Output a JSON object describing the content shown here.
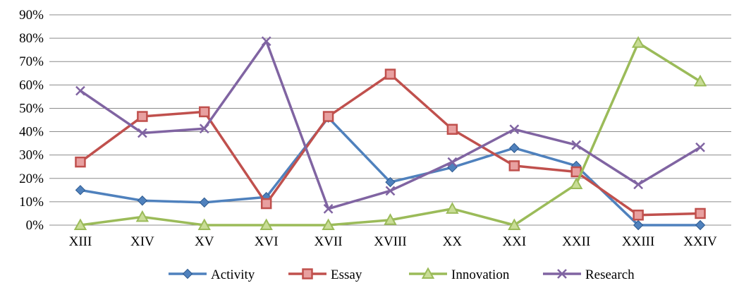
{
  "chart_data": {
    "type": "line",
    "title": "",
    "xlabel": "",
    "ylabel": "",
    "categories": [
      "XIII",
      "XIV",
      "XV",
      "XVI",
      "XVII",
      "XVIII",
      "XX",
      "XXI",
      "XXII",
      "XXIII",
      "XXIV"
    ],
    "ylim": [
      0,
      90
    ],
    "yticks": [
      0,
      10,
      20,
      30,
      40,
      50,
      60,
      70,
      80,
      90
    ],
    "ytick_labels": [
      "0%",
      "10%",
      "20%",
      "30%",
      "40%",
      "50%",
      "60%",
      "70%",
      "80%",
      "90%"
    ],
    "grid": true,
    "legend_position": "bottom",
    "series": [
      {
        "name": "Activity",
        "color": "#4f81bd",
        "marker": "diamond",
        "values": [
          15,
          10.5,
          9.7,
          12,
          46,
          18.4,
          24.7,
          33,
          25.4,
          0,
          0
        ]
      },
      {
        "name": "Essay",
        "color": "#c0504d",
        "marker": "square",
        "values": [
          27,
          46.5,
          48.5,
          9.2,
          46.5,
          64.6,
          41,
          25.4,
          22.8,
          4.3,
          5
        ]
      },
      {
        "name": "Innovation",
        "color": "#9bbb59",
        "marker": "triangle",
        "values": [
          0,
          3.5,
          0,
          0,
          0,
          2.2,
          7,
          0,
          17.5,
          78,
          61.5
        ]
      },
      {
        "name": "Research",
        "color": "#8064a2",
        "marker": "x",
        "values": [
          57.5,
          39.4,
          41.3,
          78.7,
          7,
          14.7,
          27,
          41,
          34.3,
          17.4,
          33.3
        ]
      }
    ]
  }
}
